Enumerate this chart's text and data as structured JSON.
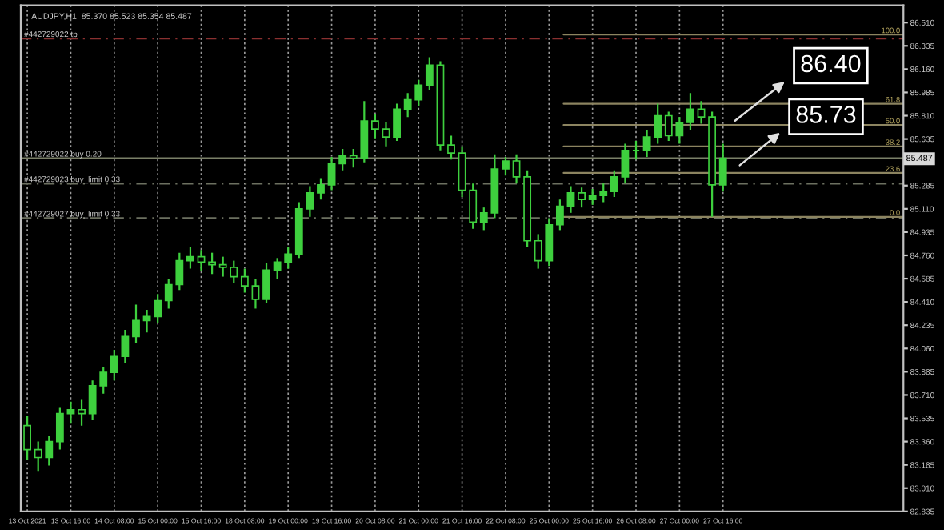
{
  "chart_data": {
    "type": "candlestick",
    "title": "AUDJPY,H1  85.370 85.523 85.354 85.487",
    "categories": [
      "13 Oct 2021",
      null,
      null,
      null,
      "13 Oct 16:00",
      null,
      null,
      null,
      "14 Oct 08:00",
      null,
      null,
      null,
      "15 Oct 00:00",
      null,
      null,
      null,
      "15 Oct 16:00",
      null,
      null,
      null,
      "18 Oct 08:00",
      null,
      null,
      null,
      "19 Oct 00:00",
      null,
      null,
      null,
      "19 Oct 16:00",
      null,
      null,
      null,
      "20 Oct 08:00",
      null,
      null,
      null,
      "21 Oct 00:00",
      null,
      null,
      null,
      "21 Oct 16:00",
      null,
      null,
      null,
      "22 Oct 08:00",
      null,
      null,
      null,
      "25 Oct 00:00",
      null,
      null,
      null,
      "25 Oct 16:00",
      null,
      null,
      null,
      "26 Oct 08:00",
      null,
      null,
      null,
      "27 Oct 00:00",
      null,
      null,
      null,
      "27 Oct 16:00",
      null,
      null,
      null,
      null,
      null,
      null,
      null,
      null,
      null,
      null,
      null,
      null,
      null,
      null,
      null,
      null
    ],
    "color": "#3ed03e",
    "ohlc": [
      [
        83.48,
        83.55,
        83.22,
        83.3
      ],
      [
        83.3,
        83.36,
        83.14,
        83.24
      ],
      [
        83.24,
        83.4,
        83.18,
        83.36
      ],
      [
        83.36,
        83.62,
        83.3,
        83.57
      ],
      [
        83.57,
        83.66,
        83.5,
        83.6
      ],
      [
        83.6,
        83.68,
        83.48,
        83.57
      ],
      [
        83.57,
        83.82,
        83.52,
        83.78
      ],
      [
        83.78,
        83.92,
        83.72,
        83.88
      ],
      [
        83.88,
        84.05,
        83.82,
        84.0
      ],
      [
        84.0,
        84.2,
        83.95,
        84.15
      ],
      [
        84.15,
        84.39,
        84.1,
        84.27
      ],
      [
        84.27,
        84.35,
        84.18,
        84.3
      ],
      [
        84.3,
        84.47,
        84.25,
        84.42
      ],
      [
        84.42,
        84.58,
        84.36,
        84.54
      ],
      [
        84.54,
        84.78,
        84.5,
        84.72
      ],
      [
        84.72,
        84.82,
        84.66,
        84.75
      ],
      [
        84.75,
        84.8,
        84.64,
        84.71
      ],
      [
        84.71,
        84.78,
        84.62,
        84.69
      ],
      [
        84.69,
        84.75,
        84.6,
        84.67
      ],
      [
        84.67,
        84.72,
        84.55,
        84.6
      ],
      [
        84.6,
        84.66,
        84.48,
        84.53
      ],
      [
        84.53,
        84.58,
        84.36,
        84.43
      ],
      [
        84.43,
        84.7,
        84.4,
        84.65
      ],
      [
        84.65,
        84.74,
        84.58,
        84.71
      ],
      [
        84.71,
        84.82,
        84.66,
        84.77
      ],
      [
        84.77,
        85.16,
        84.74,
        85.11
      ],
      [
        85.11,
        85.28,
        85.05,
        85.23
      ],
      [
        85.23,
        85.34,
        85.18,
        85.29
      ],
      [
        85.29,
        85.5,
        85.25,
        85.45
      ],
      [
        85.45,
        85.56,
        85.4,
        85.51
      ],
      [
        85.51,
        85.56,
        85.42,
        85.49
      ],
      [
        85.49,
        85.92,
        85.46,
        85.77
      ],
      [
        85.77,
        85.82,
        85.64,
        85.71
      ],
      [
        85.71,
        85.76,
        85.58,
        85.65
      ],
      [
        85.65,
        85.9,
        85.62,
        85.86
      ],
      [
        85.86,
        85.98,
        85.8,
        85.93
      ],
      [
        85.93,
        86.08,
        85.88,
        86.04
      ],
      [
        86.04,
        86.25,
        86.0,
        86.19
      ],
      [
        86.19,
        86.22,
        85.55,
        85.59
      ],
      [
        85.59,
        85.66,
        85.48,
        85.53
      ],
      [
        85.53,
        85.58,
        85.2,
        85.25
      ],
      [
        85.25,
        85.3,
        84.96,
        85.01
      ],
      [
        85.01,
        85.12,
        84.95,
        85.08
      ],
      [
        85.08,
        85.52,
        85.04,
        85.41
      ],
      [
        85.41,
        85.5,
        85.36,
        85.47
      ],
      [
        85.47,
        85.52,
        85.3,
        85.35
      ],
      [
        85.35,
        85.4,
        84.82,
        84.87
      ],
      [
        84.87,
        84.92,
        84.66,
        84.72
      ],
      [
        84.72,
        85.04,
        84.68,
        84.99
      ],
      [
        84.99,
        85.18,
        84.95,
        85.13
      ],
      [
        85.13,
        85.28,
        85.08,
        85.23
      ],
      [
        85.23,
        85.27,
        85.12,
        85.18
      ],
      [
        85.18,
        85.26,
        85.14,
        85.21
      ],
      [
        85.21,
        85.3,
        85.16,
        85.24
      ],
      [
        85.24,
        85.4,
        85.2,
        85.35
      ],
      [
        85.35,
        85.6,
        85.3,
        85.55
      ],
      [
        85.55,
        85.62,
        85.48,
        85.55
      ],
      [
        85.55,
        85.7,
        85.5,
        85.65
      ],
      [
        85.65,
        85.9,
        85.6,
        85.81
      ],
      [
        85.81,
        85.84,
        85.62,
        85.66
      ],
      [
        85.66,
        85.8,
        85.6,
        85.76
      ],
      [
        85.76,
        85.98,
        85.7,
        85.86
      ],
      [
        85.86,
        85.92,
        85.75,
        85.8
      ],
      [
        85.8,
        85.84,
        85.05,
        85.29
      ],
      [
        85.29,
        85.6,
        85.24,
        85.49
      ],
      null,
      null,
      null,
      null,
      null,
      null,
      null,
      null,
      null,
      null,
      null,
      null,
      null,
      null,
      null,
      null
    ],
    "ylim": [
      82.835,
      86.64
    ],
    "yticks": [
      {
        "value": 86.51,
        "label": "86.510"
      },
      {
        "value": 86.335,
        "label": "86.335"
      },
      {
        "value": 86.16,
        "label": "86.160"
      },
      {
        "value": 85.985,
        "label": "85.985"
      },
      {
        "value": 85.81,
        "label": "85.810"
      },
      {
        "value": 85.635,
        "label": "85.635"
      },
      {
        "value": 85.285,
        "label": "85.285"
      },
      {
        "value": 85.11,
        "label": "85.110"
      },
      {
        "value": 84.935,
        "label": "84.935"
      },
      {
        "value": 84.76,
        "label": "84.760"
      },
      {
        "value": 84.585,
        "label": "84.585"
      },
      {
        "value": 84.41,
        "label": "84.410"
      },
      {
        "value": 84.235,
        "label": "84.235"
      },
      {
        "value": 84.06,
        "label": "84.060"
      },
      {
        "value": 83.885,
        "label": "83.885"
      },
      {
        "value": 83.71,
        "label": "83.710"
      },
      {
        "value": 83.535,
        "label": "83.535"
      },
      {
        "value": 83.36,
        "label": "83.360"
      },
      {
        "value": 83.185,
        "label": "83.185"
      },
      {
        "value": 83.01,
        "label": "83.010"
      },
      {
        "value": 82.835,
        "label": "82.835"
      }
    ],
    "grid": "x",
    "ref_lines": [
      {
        "axis": "y",
        "value": 86.39,
        "label": "#442729022 tp",
        "color": "#8b3030",
        "line_style": "dashed"
      },
      {
        "axis": "y",
        "value": 85.49,
        "label": "#442729022 buy 0.20",
        "color": "#7b8068",
        "line_style": "solid"
      },
      {
        "axis": "y",
        "value": 85.3,
        "label": "#442729023 buy_limit 0.33",
        "color": "#6c7060",
        "line_style": "dashed"
      },
      {
        "axis": "y",
        "value": 85.04,
        "label": "#442729027 buy_limit 0.33",
        "color": "#6c7060",
        "line_style": "dashed"
      },
      {
        "axis": "y",
        "value": 86.42,
        "color": "#8c8460",
        "line_style": "solid"
      },
      {
        "axis": "y",
        "value": 85.9,
        "color": "#8c8460",
        "line_style": "solid"
      },
      {
        "axis": "y",
        "value": 85.74,
        "color": "#8c8460",
        "line_style": "solid"
      },
      {
        "axis": "y",
        "value": 85.58,
        "color": "#8c8460",
        "line_style": "solid"
      },
      {
        "axis": "y",
        "value": 85.38,
        "color": "#8c8460",
        "line_style": "solid"
      },
      {
        "axis": "y",
        "value": 85.05,
        "color": "#8c8460",
        "line_style": "solid"
      }
    ],
    "annotations": [
      "86.40",
      "85.73",
      {
        "text": "85.487",
        "y": 85.487
      },
      {
        "text": "100.0",
        "y": 86.42
      },
      {
        "text": "61.8",
        "y": 85.9
      },
      {
        "text": "50.0",
        "y": 85.74
      },
      {
        "text": "38.2",
        "y": 85.58
      },
      {
        "text": "23.6",
        "y": 85.38
      },
      {
        "text": "0.0",
        "y": 85.05
      }
    ]
  }
}
